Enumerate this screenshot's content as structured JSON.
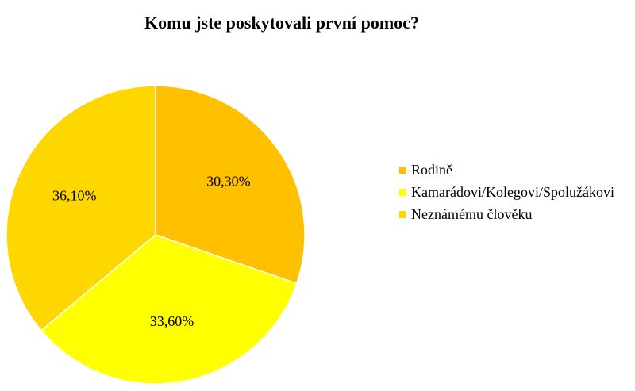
{
  "chart_data": {
    "type": "pie",
    "title": "Komu jste poskytovali první pomoc?",
    "unit": "%",
    "categories": [
      "Rodině",
      "Kamarádovi/Kolegovi/Spolužákovi",
      "Neznámému člověku"
    ],
    "values": [
      30.3,
      33.6,
      36.1
    ],
    "data_labels": [
      "30,30%",
      "33,60%",
      "36,10%"
    ],
    "colors": [
      "#FFC000",
      "#FFFF00",
      "#FFD700"
    ],
    "legend_position": "right",
    "start_angle": "12 o'clock",
    "direction": "clockwise"
  }
}
